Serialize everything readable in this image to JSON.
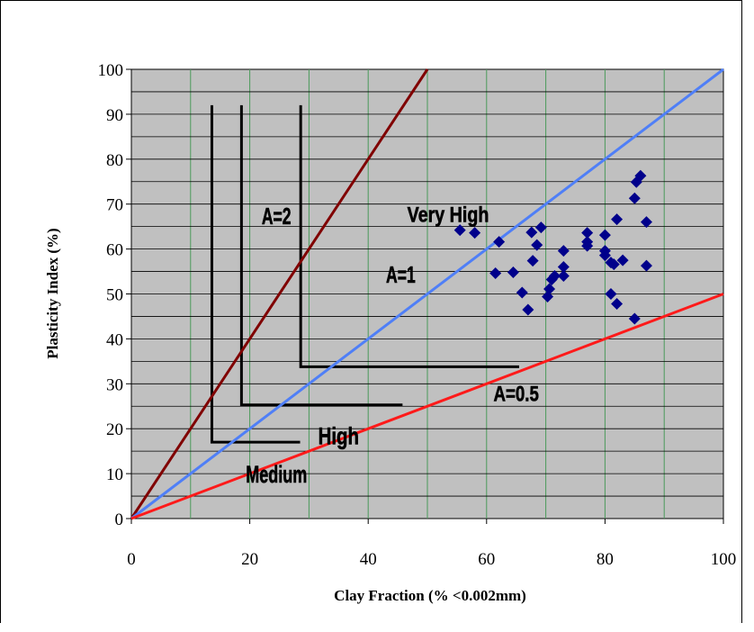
{
  "chart_data": {
    "type": "scatter",
    "xlabel": "Clay Fraction (% <0.002mm)",
    "ylabel": "Plasticity Index (%)",
    "xlim": [
      0,
      100
    ],
    "ylim": [
      0,
      100
    ],
    "x_ticks": [
      0,
      20,
      40,
      60,
      80,
      100
    ],
    "y_ticks": [
      0,
      10,
      20,
      30,
      40,
      50,
      60,
      70,
      80,
      90,
      100
    ],
    "plot_background": "#c0c0c0",
    "grid": "on",
    "legend": "none",
    "lines": [
      {
        "label": "A=2",
        "color": "#800000",
        "x": [
          0,
          50
        ],
        "y": [
          0,
          100
        ]
      },
      {
        "label": "A=1",
        "color": "#4f7ff7",
        "x": [
          0,
          100
        ],
        "y": [
          0,
          100
        ]
      },
      {
        "label": "A=0.5",
        "color": "#ff1a1a",
        "x": [
          0,
          100
        ],
        "y": [
          0,
          50
        ]
      }
    ],
    "zones": [
      {
        "label": "Medium",
        "x_start": 13.6,
        "x_end": 28.5,
        "y_top": 92,
        "y_base": 17
      },
      {
        "label": "High",
        "x_start": 18.6,
        "x_end": 45.8,
        "y_top": 92,
        "y_base": 25.3
      },
      {
        "label": "Very High",
        "x_start": 28.6,
        "x_end": 65.5,
        "y_top": 92,
        "y_base": 33.8
      }
    ],
    "annotations": [
      {
        "text": "A=2",
        "x": 24.5,
        "y": 65.5,
        "size": 26
      },
      {
        "text": "A=1",
        "x": 45.5,
        "y": 52.5,
        "size": 26
      },
      {
        "text": "Very High",
        "x": 53.5,
        "y": 66,
        "size": 24
      },
      {
        "text": "A=0.5",
        "x": 65,
        "y": 26.2,
        "size": 24
      },
      {
        "text": "High",
        "x": 35,
        "y": 16.5,
        "size": 27
      },
      {
        "text": "Medium",
        "x": 24.5,
        "y": 8,
        "size": 27
      }
    ],
    "marker_color": "#00008b",
    "points": [
      {
        "x": 55.5,
        "y": 64.2
      },
      {
        "x": 58.0,
        "y": 63.6
      },
      {
        "x": 61.5,
        "y": 54.6
      },
      {
        "x": 62.1,
        "y": 61.6
      },
      {
        "x": 64.5,
        "y": 54.8
      },
      {
        "x": 66.0,
        "y": 50.3
      },
      {
        "x": 67.0,
        "y": 46.5
      },
      {
        "x": 67.8,
        "y": 57.4
      },
      {
        "x": 67.6,
        "y": 63.7
      },
      {
        "x": 68.5,
        "y": 60.9
      },
      {
        "x": 69.2,
        "y": 64.8
      },
      {
        "x": 70.3,
        "y": 49.4
      },
      {
        "x": 70.6,
        "y": 51.1
      },
      {
        "x": 71.0,
        "y": 53.2
      },
      {
        "x": 71.5,
        "y": 54.0
      },
      {
        "x": 73.0,
        "y": 54.0
      },
      {
        "x": 73.0,
        "y": 56.0
      },
      {
        "x": 73.0,
        "y": 59.6
      },
      {
        "x": 77.0,
        "y": 60.7
      },
      {
        "x": 77.0,
        "y": 61.6
      },
      {
        "x": 77.0,
        "y": 63.6
      },
      {
        "x": 80.0,
        "y": 58.6
      },
      {
        "x": 80.0,
        "y": 59.6
      },
      {
        "x": 80.0,
        "y": 63.1
      },
      {
        "x": 81.0,
        "y": 57.0
      },
      {
        "x": 81.0,
        "y": 50.0
      },
      {
        "x": 81.5,
        "y": 56.6
      },
      {
        "x": 82.0,
        "y": 47.8
      },
      {
        "x": 82.0,
        "y": 66.6
      },
      {
        "x": 83.0,
        "y": 57.5
      },
      {
        "x": 85.0,
        "y": 44.5
      },
      {
        "x": 85.0,
        "y": 71.3
      },
      {
        "x": 85.3,
        "y": 74.9
      },
      {
        "x": 86.0,
        "y": 76.3
      },
      {
        "x": 87.0,
        "y": 66.0
      },
      {
        "x": 87.0,
        "y": 56.3
      }
    ]
  }
}
